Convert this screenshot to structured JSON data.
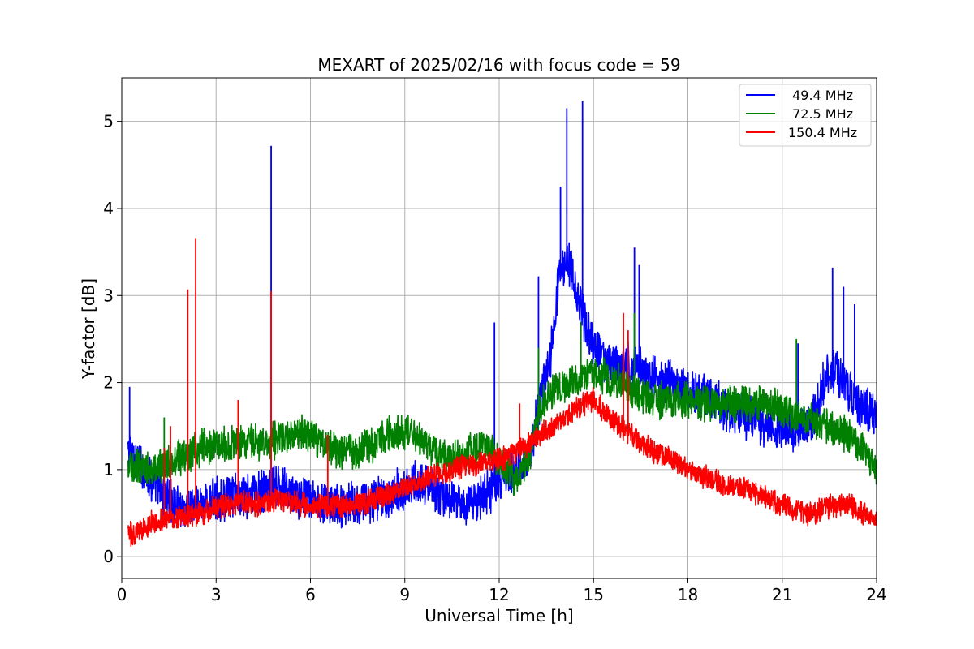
{
  "chart_data": {
    "type": "line",
    "title": "MEXART of 2025/02/16 with focus code = 59",
    "xlabel": "Universal Time [h]",
    "ylabel": "Y-factor [dB]",
    "xlim": [
      0,
      24
    ],
    "ylim": [
      -0.25,
      5.5
    ],
    "xticks": [
      0,
      3,
      6,
      9,
      12,
      15,
      18,
      21,
      24
    ],
    "yticks": [
      0,
      1,
      2,
      3,
      4,
      5
    ],
    "grid": true,
    "legend_position": "top-right",
    "series": [
      {
        "name": " 49.4 MHz",
        "color": "#0000ff",
        "x": [
          0.2,
          0.5,
          1.0,
          1.5,
          2.0,
          2.5,
          3.0,
          3.5,
          4.0,
          4.5,
          5.0,
          5.5,
          6.0,
          6.5,
          7.0,
          7.5,
          8.0,
          8.5,
          9.0,
          9.5,
          10.0,
          10.5,
          11.0,
          11.5,
          12.0,
          12.5,
          13.0,
          13.3,
          13.6,
          13.9,
          14.2,
          14.5,
          14.8,
          15.1,
          15.4,
          15.7,
          16.0,
          16.5,
          17.0,
          17.5,
          18.0,
          18.5,
          19.0,
          19.5,
          20.0,
          20.5,
          21.0,
          21.5,
          22.0,
          22.5,
          23.0,
          23.5,
          24.0
        ],
        "y": [
          1.2,
          1.1,
          0.85,
          0.65,
          0.55,
          0.6,
          0.65,
          0.7,
          0.7,
          0.75,
          0.8,
          0.7,
          0.65,
          0.62,
          0.6,
          0.62,
          0.65,
          0.7,
          0.8,
          0.85,
          0.75,
          0.65,
          0.6,
          0.7,
          0.85,
          1.0,
          1.2,
          1.8,
          2.2,
          3.2,
          3.4,
          3.0,
          2.6,
          2.4,
          2.2,
          2.2,
          2.2,
          2.15,
          2.05,
          2.0,
          1.9,
          1.85,
          1.75,
          1.65,
          1.6,
          1.5,
          1.45,
          1.45,
          1.6,
          2.2,
          2.0,
          1.7,
          1.6
        ],
        "spikes": [
          [
            0.25,
            1.95
          ],
          [
            4.75,
            4.72
          ],
          [
            11.85,
            2.69
          ],
          [
            13.25,
            3.22
          ],
          [
            13.95,
            4.25
          ],
          [
            14.15,
            5.15
          ],
          [
            14.65,
            5.23
          ],
          [
            16.3,
            3.55
          ],
          [
            16.45,
            3.35
          ],
          [
            21.5,
            2.45
          ],
          [
            22.6,
            3.32
          ],
          [
            22.95,
            3.1
          ],
          [
            23.3,
            2.9
          ]
        ]
      },
      {
        "name": " 72.5 MHz",
        "color": "#008000",
        "x": [
          0.2,
          0.5,
          1.0,
          1.5,
          2.0,
          2.5,
          3.0,
          3.5,
          4.0,
          4.5,
          5.0,
          5.5,
          6.0,
          6.5,
          7.0,
          7.5,
          8.0,
          8.5,
          9.0,
          9.5,
          10.0,
          10.5,
          11.0,
          11.5,
          12.0,
          12.5,
          13.0,
          13.3,
          13.6,
          14.0,
          14.5,
          15.0,
          15.5,
          16.0,
          16.5,
          17.0,
          17.5,
          18.0,
          18.5,
          19.0,
          19.5,
          20.0,
          20.5,
          21.0,
          21.5,
          22.0,
          22.5,
          23.0,
          23.5,
          24.0
        ],
        "y": [
          1.0,
          1.05,
          1.0,
          1.1,
          1.15,
          1.25,
          1.3,
          1.3,
          1.35,
          1.3,
          1.35,
          1.4,
          1.4,
          1.3,
          1.2,
          1.2,
          1.3,
          1.4,
          1.45,
          1.35,
          1.2,
          1.1,
          1.2,
          1.3,
          1.1,
          0.9,
          1.2,
          1.7,
          1.9,
          1.95,
          2.05,
          2.1,
          2.05,
          1.95,
          1.85,
          1.8,
          1.8,
          1.8,
          1.75,
          1.75,
          1.75,
          1.75,
          1.75,
          1.7,
          1.6,
          1.55,
          1.5,
          1.4,
          1.25,
          1.0
        ],
        "spikes": [
          [
            1.35,
            1.6
          ],
          [
            13.25,
            2.4
          ],
          [
            14.6,
            2.7
          ],
          [
            16.3,
            2.8
          ],
          [
            21.45,
            2.5
          ]
        ]
      },
      {
        "name": "150.4 MHz",
        "color": "#ff0000",
        "x": [
          0.2,
          0.5,
          1.0,
          1.5,
          2.0,
          2.5,
          3.0,
          3.5,
          4.0,
          4.5,
          5.0,
          5.5,
          6.0,
          6.5,
          7.0,
          7.5,
          8.0,
          8.5,
          9.0,
          9.5,
          10.0,
          10.5,
          11.0,
          11.5,
          12.0,
          12.5,
          13.0,
          13.5,
          14.0,
          14.5,
          15.0,
          15.5,
          16.0,
          16.5,
          17.0,
          17.5,
          18.0,
          18.5,
          19.0,
          19.5,
          20.0,
          20.5,
          21.0,
          21.5,
          22.0,
          22.5,
          23.0,
          23.5,
          24.0
        ],
        "y": [
          0.25,
          0.3,
          0.4,
          0.45,
          0.45,
          0.5,
          0.55,
          0.6,
          0.62,
          0.6,
          0.65,
          0.62,
          0.58,
          0.58,
          0.58,
          0.6,
          0.65,
          0.72,
          0.8,
          0.88,
          0.95,
          1.0,
          1.05,
          1.08,
          1.1,
          1.2,
          1.3,
          1.45,
          1.58,
          1.7,
          1.8,
          1.6,
          1.45,
          1.3,
          1.2,
          1.1,
          1.0,
          0.92,
          0.85,
          0.8,
          0.75,
          0.68,
          0.6,
          0.52,
          0.5,
          0.58,
          0.6,
          0.52,
          0.42
        ],
        "spikes": [
          [
            1.35,
            1.25
          ],
          [
            1.55,
            1.5
          ],
          [
            2.1,
            3.07
          ],
          [
            2.35,
            3.66
          ],
          [
            3.7,
            1.8
          ],
          [
            4.75,
            3.05
          ],
          [
            6.55,
            1.4
          ],
          [
            12.65,
            1.76
          ],
          [
            15.95,
            2.8
          ],
          [
            16.1,
            2.6
          ]
        ]
      }
    ]
  }
}
